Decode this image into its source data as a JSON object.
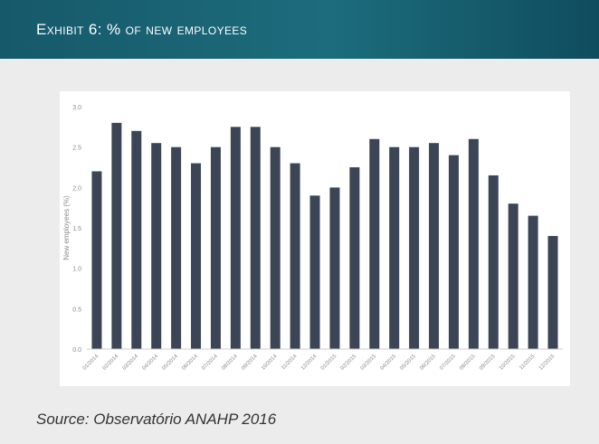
{
  "header": {
    "title": "Exhibit 6: % of new employees"
  },
  "source": "Source: Observatório ANAHP 2016",
  "chart_data": {
    "type": "bar",
    "title": "",
    "xlabel": "",
    "ylabel": "New employees (%)",
    "ylim": [
      0,
      3.0
    ],
    "yticks": [
      0.0,
      0.5,
      1.0,
      1.5,
      2.0,
      2.5,
      3.0
    ],
    "ytick_labels": [
      "0.0",
      "0.5",
      "1.0",
      "1.5",
      "2.0",
      "2.5",
      "3.0"
    ],
    "grid": false,
    "bar_color": "#3c4556",
    "categories": [
      "01/2014",
      "02/2014",
      "03/2014",
      "04/2014",
      "05/2014",
      "06/2014",
      "07/2014",
      "08/2014",
      "09/2014",
      "10/2014",
      "11/2014",
      "12/2014",
      "01/2015",
      "02/2015",
      "03/2015",
      "04/2015",
      "05/2015",
      "06/2015",
      "07/2015",
      "08/2015",
      "09/2015",
      "10/2015",
      "11/2015",
      "12/2015"
    ],
    "values": [
      2.2,
      2.8,
      2.7,
      2.55,
      2.5,
      2.3,
      2.5,
      2.75,
      2.75,
      2.5,
      2.3,
      1.9,
      2.0,
      2.25,
      2.6,
      2.5,
      2.5,
      2.55,
      2.4,
      2.6,
      2.15,
      1.8,
      1.65,
      1.4
    ]
  }
}
